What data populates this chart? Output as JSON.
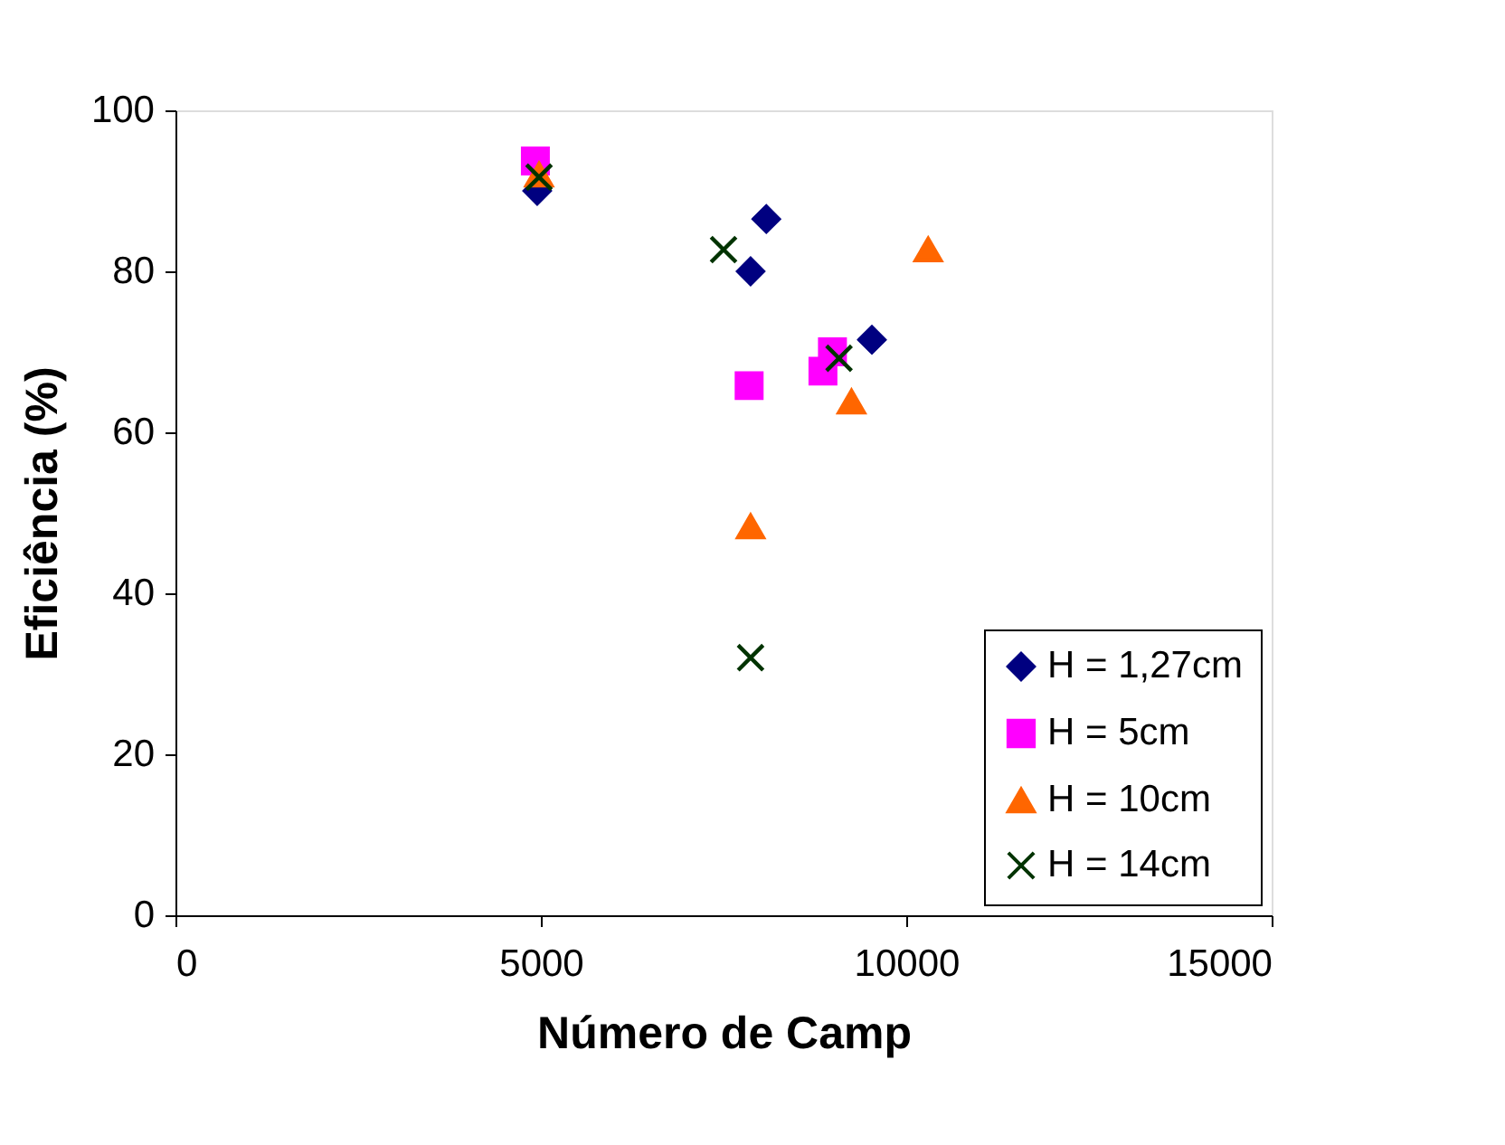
{
  "chart_data": {
    "type": "scatter",
    "xlabel": "Número de Camp",
    "ylabel": "Eficiência (%)",
    "xlim": [
      0,
      15000
    ],
    "xticks": [
      0,
      5000,
      10000,
      15000
    ],
    "ylim": [
      0,
      100
    ],
    "yticks": [
      0,
      20,
      40,
      60,
      80,
      100
    ],
    "grid": false,
    "legend": "bottom right",
    "series": [
      {
        "name": "H = 1,27cm",
        "color": "#000080",
        "marker": "diamond",
        "x": [
          4950,
          8085,
          7870,
          9530
        ],
        "values": [
          90,
          86.5,
          80,
          71.5
        ]
      },
      {
        "name": "H = 5cm",
        "color": "#ff00ff",
        "marker": "square",
        "x": [
          4925,
          7850,
          8990,
          8860
        ],
        "values": [
          93.7,
          65.8,
          70,
          67.6
        ]
      },
      {
        "name": "H = 10cm",
        "color": "#ff6600",
        "marker": "triangle",
        "x": [
          4975,
          10300,
          9250,
          7870
        ],
        "values": [
          92,
          82.7,
          63.8,
          48.3
        ]
      },
      {
        "name": "H = 14cm",
        "color": "#003300",
        "marker": "cross",
        "x": [
          4975,
          7500,
          9080,
          7870
        ],
        "values": [
          91.7,
          82.7,
          69.2,
          32
        ]
      }
    ]
  }
}
